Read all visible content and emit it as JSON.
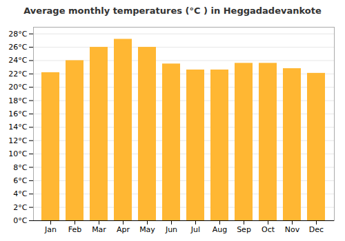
{
  "chart_data": {
    "type": "bar",
    "title": "Average monthly temperatures (°C ) in Heggadadevankote",
    "categories": [
      "Jan",
      "Feb",
      "Mar",
      "Apr",
      "May",
      "Jun",
      "Jul",
      "Aug",
      "Sep",
      "Oct",
      "Nov",
      "Dec"
    ],
    "values": [
      22.2,
      24.0,
      26.0,
      27.2,
      26.0,
      23.5,
      22.6,
      22.6,
      23.6,
      23.6,
      22.8,
      22.1
    ],
    "color": "#FFB733",
    "ylim": [
      0,
      29
    ],
    "yticks": [
      {
        "value": 0,
        "label": "0°C"
      },
      {
        "value": 2,
        "label": "2°C"
      },
      {
        "value": 4,
        "label": "4°C"
      },
      {
        "value": 6,
        "label": "6°C"
      },
      {
        "value": 8,
        "label": "8°C"
      },
      {
        "value": 10,
        "label": "10°C"
      },
      {
        "value": 12,
        "label": "12°C"
      },
      {
        "value": 14,
        "label": "14°C"
      },
      {
        "value": 16,
        "label": "16°C"
      },
      {
        "value": 18,
        "label": "18°C"
      },
      {
        "value": 20,
        "label": "20°C"
      },
      {
        "value": 22,
        "label": "22°C"
      },
      {
        "value": 24,
        "label": "24°C"
      },
      {
        "value": 26,
        "label": "26°C"
      },
      {
        "value": 28,
        "label": "28°C"
      }
    ],
    "grid": true
  }
}
